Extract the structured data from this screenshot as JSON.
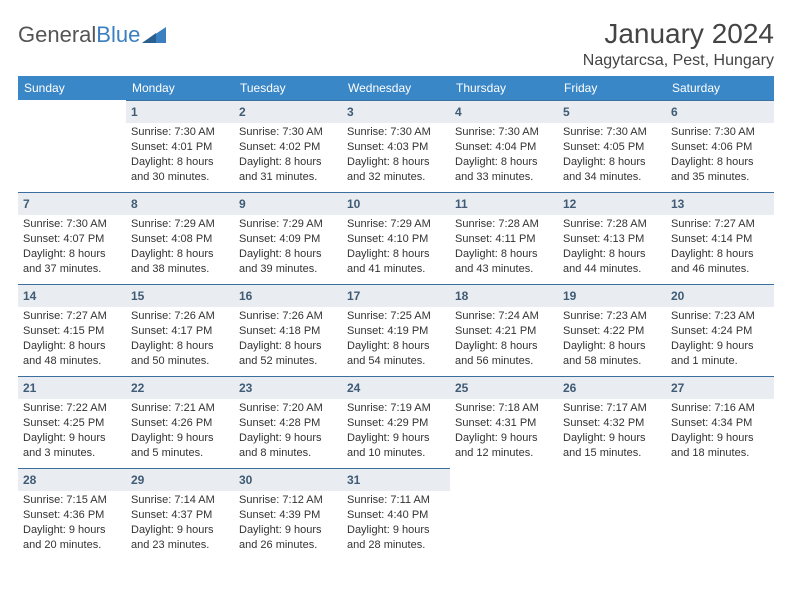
{
  "brand": {
    "part1": "General",
    "part2": "Blue"
  },
  "title": "January 2024",
  "location": "Nagytarcsa, Pest, Hungary",
  "weekdays": [
    "Sunday",
    "Monday",
    "Tuesday",
    "Wednesday",
    "Thursday",
    "Friday",
    "Saturday"
  ],
  "colors": {
    "header_bg": "#3a87c7",
    "header_text": "#ffffff",
    "daynum_bg": "#e9edf1",
    "daynum_text": "#3f5b75",
    "daynum_border": "#3a6f9f",
    "body_text": "#333333",
    "brand_blue": "#3a7fbf"
  },
  "weeks": [
    [
      {
        "empty": true
      },
      {
        "num": "1",
        "sunrise": "Sunrise: 7:30 AM",
        "sunset": "Sunset: 4:01 PM",
        "d1": "Daylight: 8 hours",
        "d2": "and 30 minutes."
      },
      {
        "num": "2",
        "sunrise": "Sunrise: 7:30 AM",
        "sunset": "Sunset: 4:02 PM",
        "d1": "Daylight: 8 hours",
        "d2": "and 31 minutes."
      },
      {
        "num": "3",
        "sunrise": "Sunrise: 7:30 AM",
        "sunset": "Sunset: 4:03 PM",
        "d1": "Daylight: 8 hours",
        "d2": "and 32 minutes."
      },
      {
        "num": "4",
        "sunrise": "Sunrise: 7:30 AM",
        "sunset": "Sunset: 4:04 PM",
        "d1": "Daylight: 8 hours",
        "d2": "and 33 minutes."
      },
      {
        "num": "5",
        "sunrise": "Sunrise: 7:30 AM",
        "sunset": "Sunset: 4:05 PM",
        "d1": "Daylight: 8 hours",
        "d2": "and 34 minutes."
      },
      {
        "num": "6",
        "sunrise": "Sunrise: 7:30 AM",
        "sunset": "Sunset: 4:06 PM",
        "d1": "Daylight: 8 hours",
        "d2": "and 35 minutes."
      }
    ],
    [
      {
        "num": "7",
        "sunrise": "Sunrise: 7:30 AM",
        "sunset": "Sunset: 4:07 PM",
        "d1": "Daylight: 8 hours",
        "d2": "and 37 minutes."
      },
      {
        "num": "8",
        "sunrise": "Sunrise: 7:29 AM",
        "sunset": "Sunset: 4:08 PM",
        "d1": "Daylight: 8 hours",
        "d2": "and 38 minutes."
      },
      {
        "num": "9",
        "sunrise": "Sunrise: 7:29 AM",
        "sunset": "Sunset: 4:09 PM",
        "d1": "Daylight: 8 hours",
        "d2": "and 39 minutes."
      },
      {
        "num": "10",
        "sunrise": "Sunrise: 7:29 AM",
        "sunset": "Sunset: 4:10 PM",
        "d1": "Daylight: 8 hours",
        "d2": "and 41 minutes."
      },
      {
        "num": "11",
        "sunrise": "Sunrise: 7:28 AM",
        "sunset": "Sunset: 4:11 PM",
        "d1": "Daylight: 8 hours",
        "d2": "and 43 minutes."
      },
      {
        "num": "12",
        "sunrise": "Sunrise: 7:28 AM",
        "sunset": "Sunset: 4:13 PM",
        "d1": "Daylight: 8 hours",
        "d2": "and 44 minutes."
      },
      {
        "num": "13",
        "sunrise": "Sunrise: 7:27 AM",
        "sunset": "Sunset: 4:14 PM",
        "d1": "Daylight: 8 hours",
        "d2": "and 46 minutes."
      }
    ],
    [
      {
        "num": "14",
        "sunrise": "Sunrise: 7:27 AM",
        "sunset": "Sunset: 4:15 PM",
        "d1": "Daylight: 8 hours",
        "d2": "and 48 minutes."
      },
      {
        "num": "15",
        "sunrise": "Sunrise: 7:26 AM",
        "sunset": "Sunset: 4:17 PM",
        "d1": "Daylight: 8 hours",
        "d2": "and 50 minutes."
      },
      {
        "num": "16",
        "sunrise": "Sunrise: 7:26 AM",
        "sunset": "Sunset: 4:18 PM",
        "d1": "Daylight: 8 hours",
        "d2": "and 52 minutes."
      },
      {
        "num": "17",
        "sunrise": "Sunrise: 7:25 AM",
        "sunset": "Sunset: 4:19 PM",
        "d1": "Daylight: 8 hours",
        "d2": "and 54 minutes."
      },
      {
        "num": "18",
        "sunrise": "Sunrise: 7:24 AM",
        "sunset": "Sunset: 4:21 PM",
        "d1": "Daylight: 8 hours",
        "d2": "and 56 minutes."
      },
      {
        "num": "19",
        "sunrise": "Sunrise: 7:23 AM",
        "sunset": "Sunset: 4:22 PM",
        "d1": "Daylight: 8 hours",
        "d2": "and 58 minutes."
      },
      {
        "num": "20",
        "sunrise": "Sunrise: 7:23 AM",
        "sunset": "Sunset: 4:24 PM",
        "d1": "Daylight: 9 hours",
        "d2": "and 1 minute."
      }
    ],
    [
      {
        "num": "21",
        "sunrise": "Sunrise: 7:22 AM",
        "sunset": "Sunset: 4:25 PM",
        "d1": "Daylight: 9 hours",
        "d2": "and 3 minutes."
      },
      {
        "num": "22",
        "sunrise": "Sunrise: 7:21 AM",
        "sunset": "Sunset: 4:26 PM",
        "d1": "Daylight: 9 hours",
        "d2": "and 5 minutes."
      },
      {
        "num": "23",
        "sunrise": "Sunrise: 7:20 AM",
        "sunset": "Sunset: 4:28 PM",
        "d1": "Daylight: 9 hours",
        "d2": "and 8 minutes."
      },
      {
        "num": "24",
        "sunrise": "Sunrise: 7:19 AM",
        "sunset": "Sunset: 4:29 PM",
        "d1": "Daylight: 9 hours",
        "d2": "and 10 minutes."
      },
      {
        "num": "25",
        "sunrise": "Sunrise: 7:18 AM",
        "sunset": "Sunset: 4:31 PM",
        "d1": "Daylight: 9 hours",
        "d2": "and 12 minutes."
      },
      {
        "num": "26",
        "sunrise": "Sunrise: 7:17 AM",
        "sunset": "Sunset: 4:32 PM",
        "d1": "Daylight: 9 hours",
        "d2": "and 15 minutes."
      },
      {
        "num": "27",
        "sunrise": "Sunrise: 7:16 AM",
        "sunset": "Sunset: 4:34 PM",
        "d1": "Daylight: 9 hours",
        "d2": "and 18 minutes."
      }
    ],
    [
      {
        "num": "28",
        "sunrise": "Sunrise: 7:15 AM",
        "sunset": "Sunset: 4:36 PM",
        "d1": "Daylight: 9 hours",
        "d2": "and 20 minutes."
      },
      {
        "num": "29",
        "sunrise": "Sunrise: 7:14 AM",
        "sunset": "Sunset: 4:37 PM",
        "d1": "Daylight: 9 hours",
        "d2": "and 23 minutes."
      },
      {
        "num": "30",
        "sunrise": "Sunrise: 7:12 AM",
        "sunset": "Sunset: 4:39 PM",
        "d1": "Daylight: 9 hours",
        "d2": "and 26 minutes."
      },
      {
        "num": "31",
        "sunrise": "Sunrise: 7:11 AM",
        "sunset": "Sunset: 4:40 PM",
        "d1": "Daylight: 9 hours",
        "d2": "and 28 minutes."
      },
      {
        "empty": true
      },
      {
        "empty": true
      },
      {
        "empty": true
      }
    ]
  ]
}
